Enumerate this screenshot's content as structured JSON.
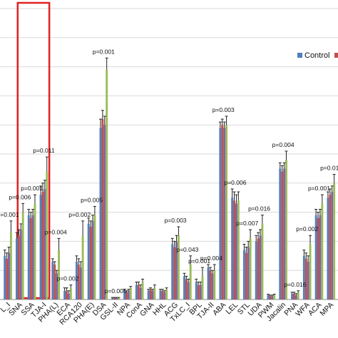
{
  "chart_data": {
    "type": "bar",
    "title": "",
    "xlabel": "",
    "ylabel": "",
    "ylim": [
      0,
      10
    ],
    "grid": "horizontal",
    "legend_placement": "top-right",
    "series": [
      {
        "name": "Control",
        "color": "#4f81bd"
      },
      {
        "name": "",
        "color": "#c0504d"
      },
      {
        "name": "",
        "color": "#8064a2"
      },
      {
        "name": "",
        "color": "#9bbb59"
      }
    ],
    "error_bar_color": "#222222",
    "highlight_box": {
      "from": "SNA",
      "to": "TJA-I",
      "color": "#e02020"
    },
    "categories": [
      {
        "label": "L_I",
        "values": [
          1.5,
          1.4,
          1.6,
          2.3
        ],
        "errors": [
          0.2,
          0.2,
          0.2,
          0.4
        ],
        "p": "0.001"
      },
      {
        "label": "SNA",
        "values": [
          2.1,
          2.2,
          2.4,
          3.0
        ],
        "errors": [
          0.2,
          0.2,
          0.2,
          0.3
        ],
        "p": "0.006"
      },
      {
        "label": "SSA",
        "values": [
          2.9,
          2.8,
          2.9,
          3.3
        ],
        "errors": [
          0.2,
          0.2,
          0.2,
          0.3
        ],
        "p": "0.001"
      },
      {
        "label": "TJA-I",
        "values": [
          3.6,
          3.7,
          3.8,
          4.4
        ],
        "errors": [
          0.3,
          0.3,
          0.3,
          0.5
        ],
        "p": "0.011"
      },
      {
        "label": "PHA(L)",
        "values": [
          1.3,
          1.2,
          0.9,
          1.7
        ],
        "errors": [
          0.1,
          0.1,
          0.1,
          0.4
        ],
        "p": "0.004"
      },
      {
        "label": "ECA",
        "values": [
          0.3,
          0.3,
          0.2,
          0.4
        ],
        "errors": [
          0.1,
          0.1,
          0.1,
          0.1
        ],
        "p": "0.002"
      },
      {
        "label": "RCA120",
        "values": [
          1.3,
          1.2,
          1.1,
          2.2
        ],
        "errors": [
          0.2,
          0.2,
          0.2,
          0.5
        ],
        "p": "0.002"
      },
      {
        "label": "PHA(E)",
        "values": [
          2.6,
          2.5,
          2.7,
          2.9
        ],
        "errors": [
          0.2,
          0.2,
          0.2,
          0.3
        ],
        "p": "0.005"
      },
      {
        "label": "DSA",
        "values": [
          5.9,
          6.2,
          6.0,
          7.9
        ],
        "errors": [
          0.3,
          0.3,
          0.3,
          0.4
        ],
        "p": "0.001"
      },
      {
        "label": "GSL-II",
        "values": [
          0.05,
          0.05,
          0.05,
          0.05
        ],
        "errors": [
          0.02,
          0.02,
          0.02,
          0.02
        ],
        "p": "0.005"
      },
      {
        "label": "NPA",
        "values": [
          0.3,
          0.25,
          0.3,
          0.4
        ],
        "errors": [
          0.05,
          0.05,
          0.05,
          0.05
        ],
        "p": ""
      },
      {
        "label": "ConA",
        "values": [
          0.5,
          0.5,
          0.4,
          0.6
        ],
        "errors": [
          0.1,
          0.1,
          0.1,
          0.1
        ],
        "p": ""
      },
      {
        "label": "GNA",
        "values": [
          0.3,
          0.35,
          0.3,
          0.4
        ],
        "errors": [
          0.05,
          0.05,
          0.05,
          0.1
        ],
        "p": ""
      },
      {
        "label": "HHL",
        "values": [
          0.3,
          0.3,
          0.25,
          0.35
        ],
        "errors": [
          0.05,
          0.05,
          0.05,
          0.05
        ],
        "p": ""
      },
      {
        "label": "ACG",
        "values": [
          1.9,
          1.8,
          2.0,
          2.2
        ],
        "errors": [
          0.2,
          0.2,
          0.2,
          0.3
        ],
        "p": "0.003"
      },
      {
        "label": "TxLC_I",
        "values": [
          0.8,
          0.7,
          0.6,
          1.2
        ],
        "errors": [
          0.1,
          0.1,
          0.1,
          0.3
        ],
        "p": "0.043"
      },
      {
        "label": "BPL",
        "values": [
          0.6,
          0.5,
          0.5,
          0.8
        ],
        "errors": [
          0.1,
          0.1,
          0.1,
          0.3
        ],
        "p": "0.001"
      },
      {
        "label": "TJA-II",
        "values": [
          1.1,
          1.0,
          0.9,
          1.0
        ],
        "errors": [
          0.1,
          0.1,
          0.1,
          0.2
        ],
        "p": "0.004"
      },
      {
        "label": "ABA",
        "values": [
          5.9,
          6.0,
          5.9,
          6.0
        ],
        "errors": [
          0.2,
          0.2,
          0.2,
          0.3
        ],
        "p": "0.003"
      },
      {
        "label": "LEL",
        "values": [
          3.5,
          3.4,
          3.3,
          3.4
        ],
        "errors": [
          0.3,
          0.3,
          0.3,
          0.3
        ],
        "p": "0.006"
      },
      {
        "label": "STL",
        "values": [
          1.7,
          1.6,
          1.8,
          2.1
        ],
        "errors": [
          0.2,
          0.2,
          0.2,
          0.3
        ],
        "p": "0.007"
      },
      {
        "label": "UDA",
        "values": [
          2.0,
          2.1,
          2.2,
          2.6
        ],
        "errors": [
          0.2,
          0.2,
          0.2,
          0.3
        ],
        "p": "0.016"
      },
      {
        "label": "PWM",
        "values": [
          0.15,
          0.12,
          0.12,
          0.15
        ],
        "errors": [
          0.03,
          0.03,
          0.03,
          0.03
        ],
        "p": ""
      },
      {
        "label": "Jacalin",
        "values": [
          4.5,
          4.4,
          4.5,
          4.8
        ],
        "errors": [
          0.2,
          0.2,
          0.2,
          0.3
        ],
        "p": "0.004"
      },
      {
        "label": "PNA",
        "values": [
          0.2,
          0.2,
          0.15,
          0.25
        ],
        "errors": [
          0.05,
          0.05,
          0.05,
          0.05
        ],
        "p": "0.016"
      },
      {
        "label": "WFA",
        "values": [
          1.5,
          1.4,
          1.3,
          1.9
        ],
        "errors": [
          0.2,
          0.2,
          0.2,
          0.3
        ],
        "p": "0.002"
      },
      {
        "label": "ACA",
        "values": [
          2.9,
          2.8,
          2.9,
          3.3
        ],
        "errors": [
          0.2,
          0.2,
          0.2,
          0.3
        ],
        "p": "0.001"
      },
      {
        "label": "MPA",
        "values": [
          3.5,
          3.6,
          3.7,
          4.0
        ],
        "errors": [
          0.2,
          0.2,
          0.2,
          0.3
        ],
        "p": "0.011"
      }
    ]
  }
}
